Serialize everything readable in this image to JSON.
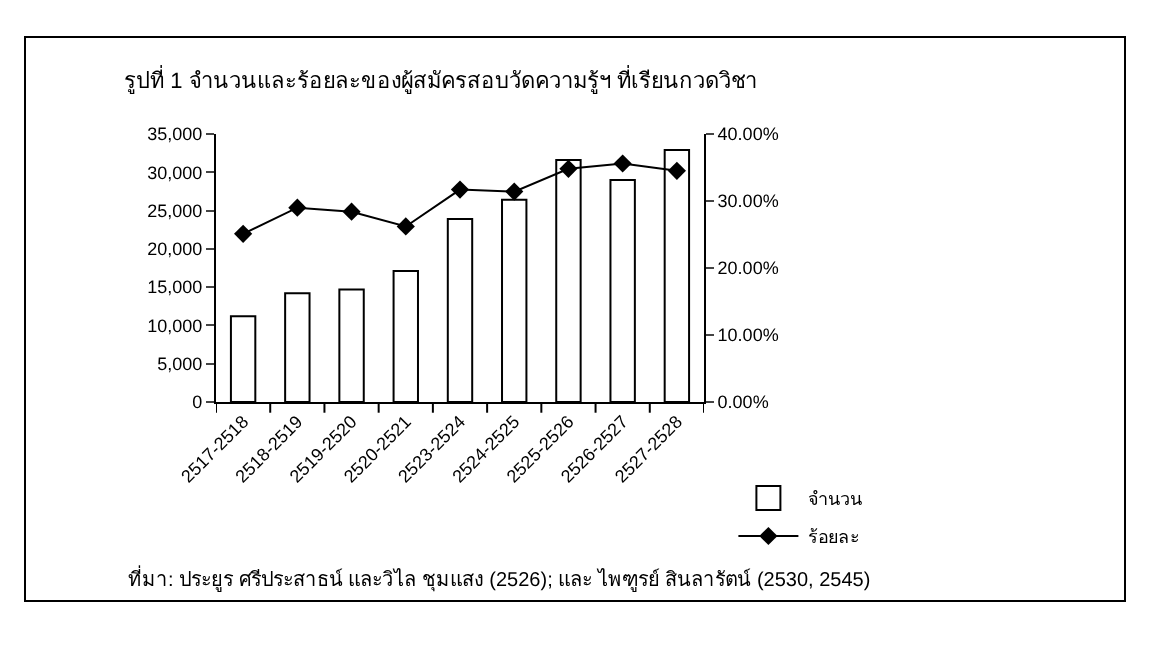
{
  "chart_data": {
    "type": "bar",
    "title": "รูปที่ 1 จำนวนและร้อยละของผู้สมัครสอบวัดความรู้ฯ ที่เรียนกวดวิชา",
    "categories": [
      "2517-2518",
      "2518-2519",
      "2519-2520",
      "2520-2521",
      "2523-2524",
      "2524-2525",
      "2525-2526",
      "2526-2527",
      "2527-2528"
    ],
    "series": [
      {
        "name": "จำนวน",
        "color": "#ffffff",
        "values": [
          11200,
          14200,
          14700,
          17100,
          23900,
          26400,
          31600,
          29000,
          32900
        ]
      },
      {
        "name": "ร้อยละ",
        "type": "line",
        "axis": "y2",
        "color": "#000000",
        "marker": "diamond",
        "values": [
          25.1,
          29.0,
          28.4,
          26.2,
          31.7,
          31.4,
          34.8,
          35.6,
          34.5
        ]
      }
    ],
    "ylim": [
      0,
      35000
    ],
    "yticks": [
      {
        "value": 0,
        "label": "0"
      },
      {
        "value": 5000,
        "label": "5,000"
      },
      {
        "value": 10000,
        "label": "10,000"
      },
      {
        "value": 15000,
        "label": "15,000"
      },
      {
        "value": 20000,
        "label": "20,000"
      },
      {
        "value": 25000,
        "label": "25,000"
      },
      {
        "value": 30000,
        "label": "30,000"
      },
      {
        "value": 35000,
        "label": "35,000"
      }
    ],
    "y2lim": [
      0,
      40
    ],
    "y2ticks": [
      {
        "value": 0,
        "label": "0.00%"
      },
      {
        "value": 10,
        "label": "10.00%"
      },
      {
        "value": 20,
        "label": "20.00%"
      },
      {
        "value": 30,
        "label": "30.00%"
      },
      {
        "value": 40,
        "label": "40.00%"
      }
    ],
    "annotations": [
      "ที่มา: ประยูร ศรีประสาธน์ และวิไล ชุมแสง (2526); และ ไพฑูรย์ สินลารัตน์ (2530, 2545)"
    ],
    "legend": "bottom right",
    "grid": false
  }
}
